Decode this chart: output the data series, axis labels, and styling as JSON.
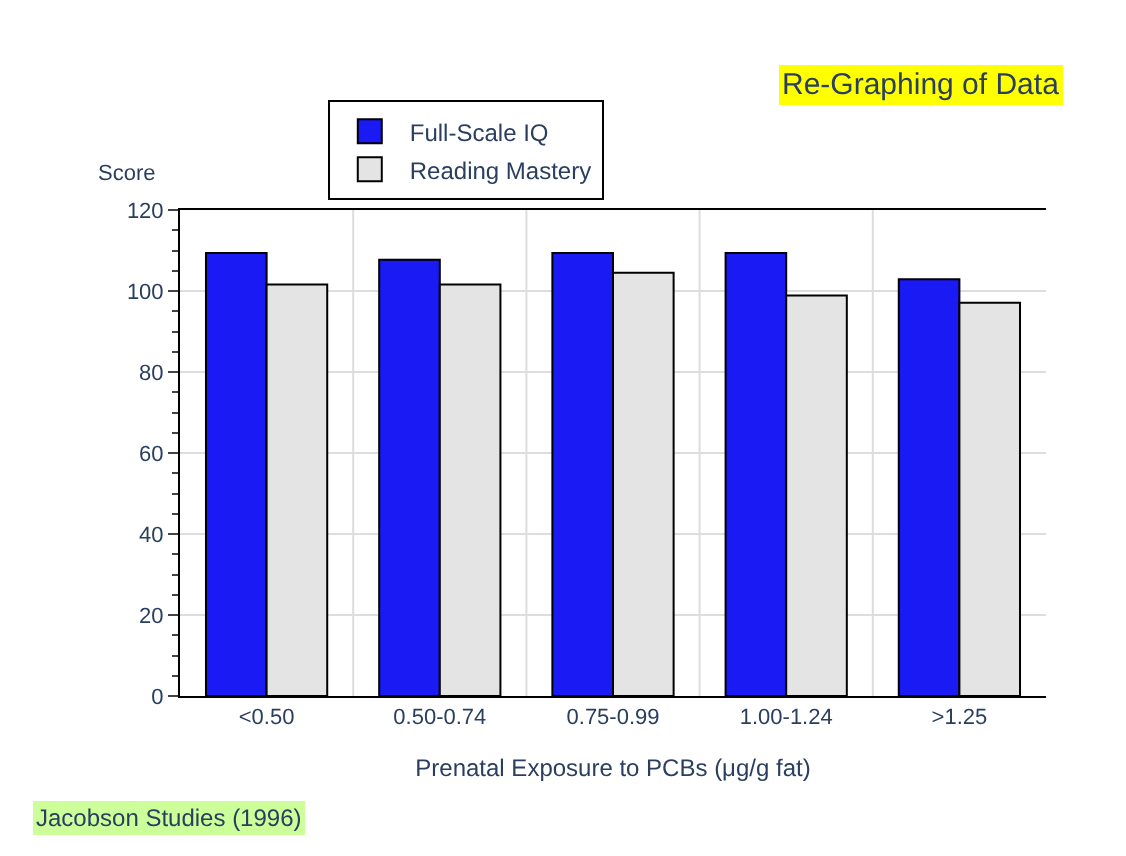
{
  "chart_data": {
    "type": "bar",
    "ylabel": "Score",
    "xlabel": "Prenatal Exposure to PCBs (μg/g fat)",
    "categories": [
      "<0.50",
      "0.50-0.74",
      "0.75-0.99",
      "1.00-1.24",
      ">1.25"
    ],
    "series": [
      {
        "name": "Full-Scale IQ",
        "color": "#1a1af5",
        "values": [
          109.4,
          107.7,
          109.4,
          109.4,
          102.9
        ]
      },
      {
        "name": "Reading Mastery",
        "color": "#e4e4e4",
        "values": [
          101.6,
          101.6,
          104.5,
          98.9,
          97.1
        ]
      }
    ],
    "ylim": [
      0,
      120
    ],
    "yticks": [
      0,
      20,
      40,
      60,
      80,
      100,
      120
    ],
    "grid": "y",
    "legend": "top",
    "annotations": [
      "Re-Graphing of Data",
      "Jacobson Studies (1996)"
    ]
  }
}
